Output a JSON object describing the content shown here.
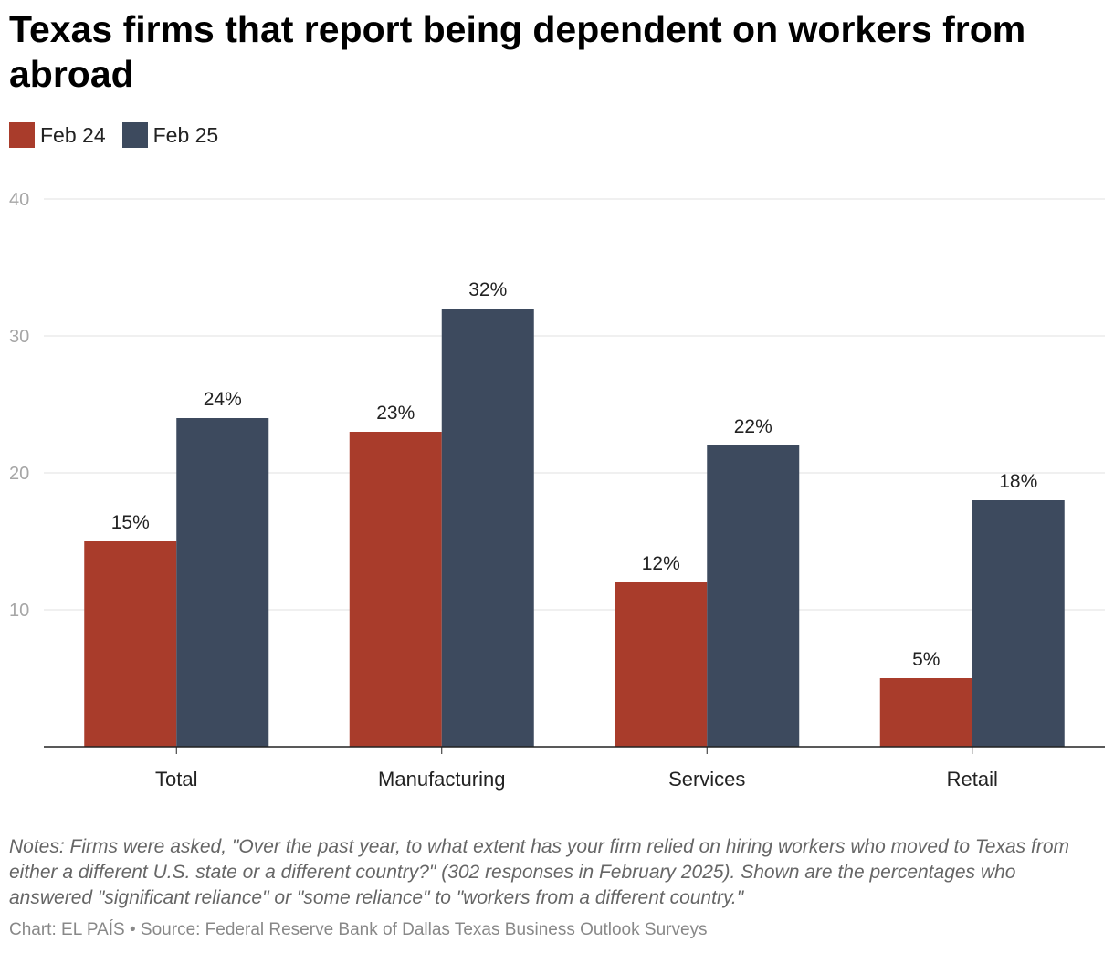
{
  "title": "Texas firms that report being dependent on workers from abroad",
  "legend": [
    {
      "label": "Feb 24",
      "color": "#a93c2b"
    },
    {
      "label": "Feb 25",
      "color": "#3d4a5e"
    }
  ],
  "chart_data": {
    "type": "bar",
    "categories": [
      "Total",
      "Manufacturing",
      "Services",
      "Retail"
    ],
    "series": [
      {
        "name": "Feb 24",
        "values": [
          15,
          23,
          12,
          5
        ],
        "labels": [
          "15%",
          "23%",
          "12%",
          "5%"
        ],
        "color": "#a93c2b"
      },
      {
        "name": "Feb 25",
        "values": [
          24,
          32,
          22,
          18
        ],
        "labels": [
          "24%",
          "32%",
          "22%",
          "18%"
        ],
        "color": "#3d4a5e"
      }
    ],
    "ylim": [
      0,
      40
    ],
    "yticks": [
      10,
      20,
      30,
      40
    ],
    "grid": true,
    "legend_position": "top-left"
  },
  "notes": "Notes: Firms were asked, \"Over the past year, to what extent has your firm relied on hiring workers who moved to Texas from either a different U.S. state or a different country?\" (302 responses in February 2025). Shown are the percentages who answered \"significant reliance\" or \"some reliance\" to \"workers from a different country.\"",
  "credit": "Chart: EL PAÍS • Source: Federal Reserve Bank of Dallas Texas Business Outlook Surveys"
}
